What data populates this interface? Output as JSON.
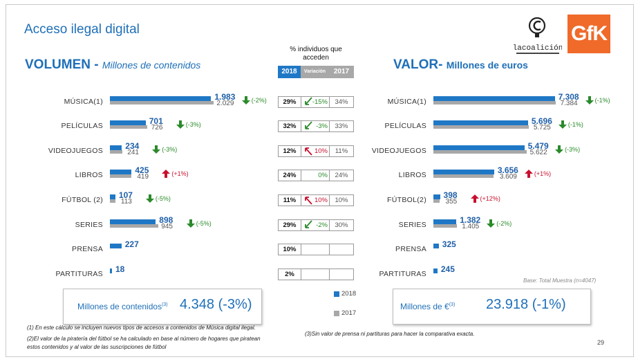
{
  "title": "Acceso ilegal digital",
  "logo_coalicion": "lacoalición",
  "logo_gfk": "GfK",
  "colors": {
    "y2018": "#1f78c6",
    "y2017": "#a8a8a8",
    "accent": "#1e6fb8",
    "down": "#2a8a2a",
    "up": "#c8102e"
  },
  "left_heading": {
    "main": "VOLUMEN -",
    "sub": "Millones de contenidos"
  },
  "right_heading": {
    "main": "VALOR-",
    "sub": "Millones de euros"
  },
  "pct_title": "% individuos que acceden",
  "pct_headers": {
    "y2018": "2018",
    "var": "Variación",
    "y2017": "2017"
  },
  "chart_data": [
    {
      "type": "bar",
      "title": "VOLUMEN - Millones de contenidos",
      "categories": [
        "MÚSICA(1)",
        "PELÍCULAS",
        "VIDEOJUEGOS",
        "LIBROS",
        "FÚTBOL (2)",
        "SERIES",
        "PRENSA",
        "PARTITURAS"
      ],
      "series": [
        {
          "name": "2018",
          "values": [
            1983,
            701,
            234,
            425,
            107,
            898,
            227,
            18
          ],
          "labels": [
            "1.983",
            "701",
            "234",
            "425",
            "107",
            "898",
            "227",
            "18"
          ]
        },
        {
          "name": "2017",
          "values": [
            2029,
            726,
            241,
            419,
            113,
            945,
            null,
            null
          ],
          "labels": [
            "2.029",
            "726",
            "241",
            "419",
            "113",
            "945",
            "",
            ""
          ]
        }
      ],
      "changes": [
        "(-2%)",
        "(-3%)",
        "(-3%)",
        "(+1%)",
        "(-5%)",
        "(-5%)",
        "",
        ""
      ],
      "directions": [
        "down",
        "down",
        "down",
        "up",
        "down",
        "down",
        "",
        ""
      ],
      "xlim": [
        0,
        2100
      ]
    },
    {
      "type": "bar",
      "title": "VALOR- Millones de euros",
      "categories": [
        "MÚSICA(1)",
        "PELÍCULAS",
        "VIDEOJUEGOS",
        "LIBROS",
        "FÚTBOL(2)",
        "SERIES",
        "PRENSA",
        "PARTITURAS"
      ],
      "series": [
        {
          "name": "2018",
          "values": [
            7308,
            5696,
            5479,
            3656,
            398,
            1382,
            325,
            245
          ],
          "labels": [
            "7.308",
            "5.696",
            "5.479",
            "3.656",
            "398",
            "1.382",
            "325",
            "245"
          ]
        },
        {
          "name": "2017",
          "values": [
            7384,
            5725,
            5622,
            3609,
            355,
            1405,
            null,
            null
          ],
          "labels": [
            "7.384",
            "5.725",
            "5.622",
            "3.609",
            "355",
            "1.405",
            "",
            ""
          ]
        }
      ],
      "changes": [
        "(-1%)",
        "(-1%)",
        "(-3%)",
        "(+1%)",
        "(+12%)",
        "(-2%)",
        "",
        ""
      ],
      "directions": [
        "down",
        "down",
        "down",
        "up",
        "up",
        "down",
        "",
        ""
      ],
      "xlim": [
        0,
        7700
      ]
    },
    {
      "type": "table",
      "title": "% individuos que acceden",
      "columns": [
        "2018",
        "Variación",
        "2017"
      ],
      "rows": [
        [
          "29%",
          "-15%",
          "34%"
        ],
        [
          "32%",
          "-3%",
          "33%"
        ],
        [
          "12%",
          "10%",
          "11%"
        ],
        [
          "24%",
          "0%",
          "24%"
        ],
        [
          "11%",
          "10%",
          "10%"
        ],
        [
          "29%",
          "-2%",
          "30%"
        ],
        [
          "10%",
          "",
          ""
        ],
        [
          "2%",
          "",
          ""
        ]
      ],
      "directions": [
        "down",
        "down",
        "up",
        "flat",
        "up",
        "down",
        "",
        ""
      ]
    }
  ],
  "legend": {
    "y2018": "2018",
    "y2017": "2017"
  },
  "summary_left": {
    "label": "Millones de contenidos",
    "sup": "(3)",
    "value": "4.348 (-3%)"
  },
  "summary_right": {
    "label": "Millones de €",
    "sup": "(3)",
    "value": "23.918 (-1%)"
  },
  "base_note": "Base: Total Muestra (n=4047)",
  "footnotes": [
    "(1) En este cálculo se incluyen nuevos tipos de accesos a contenidos de Música digital ilegal.",
    "(2)El valor de la piratería del fútbol se ha calculado en base al número de hogares que piratean",
    "estos contenidos y al valor de las suscripciones de fútbol",
    "(3)Sin valor de prensa ni partituras para hacer la comparativa exacta."
  ],
  "page_number": "29"
}
